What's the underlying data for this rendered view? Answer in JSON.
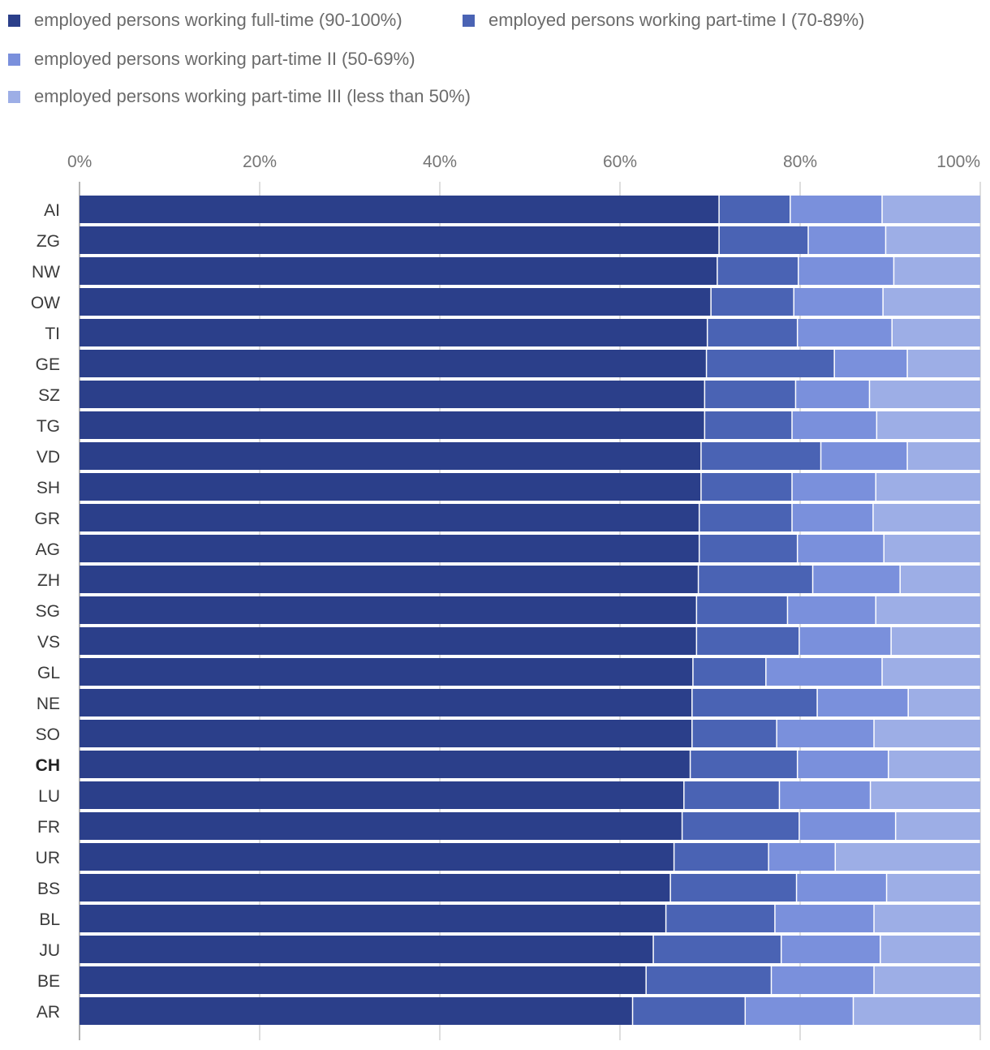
{
  "chart_data": {
    "type": "bar",
    "orientation": "horizontal",
    "stacked": true,
    "title": "",
    "xlabel": "",
    "ylabel": "",
    "xlim": [
      0,
      100
    ],
    "x_ticks": [
      "0%",
      "20%",
      "40%",
      "60%",
      "80%",
      "100%"
    ],
    "grid": true,
    "legend_position": "top-left",
    "highlight_category": "CH",
    "categories": [
      "AI",
      "ZG",
      "NW",
      "OW",
      "TI",
      "GE",
      "SZ",
      "TG",
      "VD",
      "SH",
      "GR",
      "AG",
      "ZH",
      "SG",
      "VS",
      "GL",
      "NE",
      "SO",
      "CH",
      "LU",
      "FR",
      "UR",
      "BS",
      "BL",
      "JU",
      "BE",
      "AR"
    ],
    "series": [
      {
        "name": "employed persons working full-time (90-100%)",
        "color": "#2b3f8a",
        "values": [
          71.0,
          71.0,
          70.8,
          70.1,
          69.7,
          69.6,
          69.4,
          69.4,
          69.0,
          69.0,
          68.8,
          68.8,
          68.7,
          68.5,
          68.5,
          68.1,
          68.0,
          68.0,
          67.8,
          67.1,
          66.9,
          66.0,
          65.6,
          65.1,
          63.7,
          62.9,
          61.4
        ]
      },
      {
        "name": "employed persons working part-time I (70-89%)",
        "color": "#4a63b4",
        "values": [
          7.9,
          9.9,
          9.0,
          9.2,
          10.0,
          14.2,
          10.1,
          9.7,
          13.3,
          10.1,
          10.3,
          10.9,
          12.7,
          10.1,
          11.4,
          8.1,
          13.9,
          9.4,
          11.9,
          10.6,
          13.0,
          10.5,
          14.0,
          12.1,
          14.2,
          13.9,
          12.5
        ]
      },
      {
        "name": "employed persons working part-time II (50-69%)",
        "color": "#7a90dc",
        "values": [
          10.2,
          8.6,
          10.6,
          9.9,
          10.5,
          8.1,
          8.2,
          9.4,
          9.6,
          9.3,
          9.0,
          9.6,
          9.7,
          9.8,
          10.2,
          12.9,
          10.1,
          10.8,
          10.1,
          10.1,
          10.7,
          7.4,
          10.0,
          11.0,
          11.0,
          11.4,
          12.0
        ]
      },
      {
        "name": "employed persons working part-time III (less than 50%)",
        "color": "#9daee6",
        "values": [
          10.9,
          10.5,
          9.6,
          10.8,
          9.8,
          8.1,
          12.3,
          11.5,
          8.1,
          11.6,
          11.9,
          10.7,
          8.9,
          11.6,
          9.9,
          10.9,
          8.0,
          11.8,
          10.2,
          12.2,
          9.4,
          16.1,
          10.4,
          11.8,
          11.1,
          11.8,
          14.1
        ]
      }
    ]
  }
}
